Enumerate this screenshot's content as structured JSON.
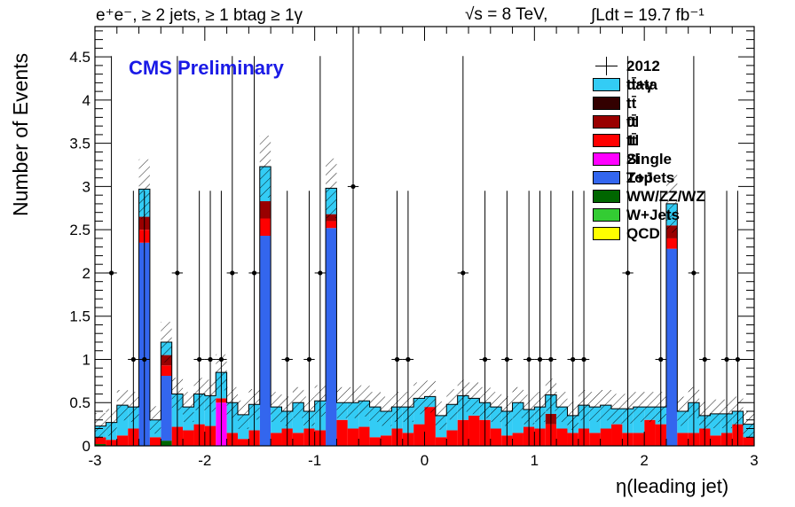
{
  "header": {
    "selection": "e⁺e⁻, ≥ 2 jets, ≥ 1 btag ≥ 1γ",
    "energy": "√s = 8 TeV,",
    "lumi": "∫Ldt = 19.7 fb⁻¹"
  },
  "watermark": "CMS Preliminary",
  "colors": {
    "ttgamma": "#33ccf5",
    "tt0l": "#330000",
    "tt1l": "#990000",
    "tt2l": "#ff0000",
    "singletop": "#ff00ff",
    "zjets": "#3366ee",
    "diboson": "#006600",
    "wjets": "#33cc33",
    "qcd": "#ffff00"
  },
  "chart_data": {
    "type": "bar",
    "stacked": true,
    "xlabel": "η(leading jet)",
    "ylabel": "Number of Events",
    "xlim": [
      -3,
      3
    ],
    "ylim": [
      0,
      4.85
    ],
    "xticks": [
      "-3",
      "-2",
      "-1",
      "0",
      "1",
      "2",
      "3"
    ],
    "yticks": [
      "0",
      "0.5",
      "1",
      "1.5",
      "2",
      "2.5",
      "3",
      "3.5",
      "4",
      "4.5"
    ],
    "bin_edges_note": "60 uniform bins from -3 to 3",
    "series": [
      {
        "name": "QCD",
        "color_key": "qcd",
        "values": [
          0,
          0,
          0,
          0,
          0,
          0,
          0,
          0,
          0,
          0,
          0,
          0,
          0,
          0,
          0,
          0,
          0,
          0,
          0,
          0,
          0,
          0,
          0,
          0,
          0,
          0,
          0,
          0,
          0,
          0,
          0,
          0,
          0,
          0,
          0,
          0,
          0,
          0,
          0,
          0,
          0,
          0,
          0,
          0,
          0,
          0,
          0,
          0,
          0,
          0,
          0,
          0,
          0,
          0,
          0,
          0,
          0,
          0,
          0,
          0
        ]
      },
      {
        "name": "W+Jets",
        "color_key": "wjets",
        "values": [
          0,
          0,
          0,
          0,
          0,
          0,
          0,
          0,
          0,
          0,
          0,
          0,
          0,
          0,
          0,
          0,
          0,
          0,
          0,
          0,
          0,
          0,
          0,
          0,
          0,
          0,
          0,
          0,
          0,
          0,
          0,
          0,
          0,
          0,
          0,
          0,
          0,
          0,
          0,
          0,
          0,
          0,
          0,
          0,
          0,
          0,
          0,
          0,
          0,
          0,
          0,
          0,
          0,
          0,
          0,
          0,
          0,
          0,
          0,
          0
        ]
      },
      {
        "name": "WW/ZZ/WZ",
        "color_key": "diboson",
        "values": [
          0.02,
          0,
          0,
          0,
          0,
          0,
          0.06,
          0,
          0,
          0,
          0,
          0,
          0,
          0,
          0,
          0,
          0,
          0,
          0,
          0,
          0,
          0,
          0,
          0,
          0,
          0,
          0,
          0,
          0,
          0,
          0,
          0,
          0,
          0,
          0,
          0,
          0,
          0,
          0,
          0,
          0,
          0,
          0,
          0,
          0,
          0,
          0,
          0,
          0,
          0,
          0,
          0,
          0,
          0,
          0,
          0,
          0,
          0,
          0,
          0
        ]
      },
      {
        "name": "Z+Jets",
        "color_key": "zjets",
        "values": [
          0,
          0,
          0,
          0,
          2.35,
          0,
          0.75,
          0,
          0,
          0,
          0,
          0,
          0,
          0,
          0,
          2.43,
          0,
          0,
          0,
          0,
          0,
          2.52,
          0,
          0,
          0,
          0,
          0,
          0,
          0,
          0,
          0,
          0,
          0,
          0,
          0,
          0,
          0,
          0,
          0,
          0,
          0,
          0,
          0,
          0,
          0,
          0,
          0,
          0,
          0,
          0,
          0,
          0,
          2.28,
          0,
          0,
          0,
          0,
          0,
          0,
          0
        ]
      },
      {
        "name": "Single Top",
        "color_key": "singletop",
        "values": [
          0,
          0,
          0,
          0,
          0,
          0,
          0,
          0,
          0,
          0,
          0,
          0.5,
          0,
          0,
          0,
          0,
          0,
          0,
          0,
          0,
          0,
          0,
          0,
          0,
          0,
          0,
          0,
          0,
          0,
          0,
          0,
          0,
          0,
          0,
          0,
          0,
          0,
          0,
          0,
          0,
          0,
          0,
          0,
          0,
          0,
          0,
          0,
          0,
          0,
          0,
          0,
          0,
          0,
          0,
          0,
          0,
          0,
          0,
          0,
          0
        ]
      },
      {
        "name": "tt̄ 2l",
        "color_key": "tt2l",
        "values": [
          0.08,
          0.07,
          0.12,
          0.2,
          0.15,
          0.1,
          0.12,
          0.22,
          0.18,
          0.25,
          0.23,
          0.05,
          0.15,
          0.08,
          0.18,
          0.2,
          0.15,
          0.2,
          0.15,
          0.2,
          0.18,
          0.08,
          0.3,
          0.2,
          0.22,
          0.1,
          0.12,
          0.2,
          0.15,
          0.25,
          0.45,
          0.1,
          0.18,
          0.3,
          0.35,
          0.3,
          0.2,
          0.12,
          0.15,
          0.22,
          0.2,
          0.25,
          0.2,
          0.15,
          0.2,
          0.15,
          0.2,
          0.25,
          0.15,
          0.15,
          0.3,
          0.25,
          0.12,
          0.15,
          0.15,
          0.2,
          0.12,
          0.15,
          0.25,
          0.1
        ]
      },
      {
        "name": "tt̄ 1l",
        "color_key": "tt1l",
        "values": [
          0,
          0,
          0,
          0,
          0.15,
          0,
          0.12,
          0,
          0,
          0,
          0,
          0,
          0,
          0,
          0,
          0.2,
          0,
          0,
          0,
          0,
          0,
          0.08,
          0,
          0,
          0,
          0,
          0,
          0,
          0,
          0,
          0,
          0,
          0,
          0,
          0,
          0,
          0,
          0,
          0,
          0,
          0,
          0.12,
          0,
          0,
          0,
          0,
          0,
          0,
          0,
          0,
          0,
          0,
          0.15,
          0,
          0,
          0,
          0,
          0,
          0,
          0
        ]
      },
      {
        "name": "tt̄ 0l",
        "color_key": "tt0l",
        "values": [
          0,
          0,
          0,
          0,
          0,
          0,
          0,
          0,
          0,
          0,
          0,
          0,
          0,
          0,
          0,
          0,
          0,
          0,
          0,
          0,
          0,
          0,
          0,
          0,
          0,
          0,
          0,
          0,
          0,
          0,
          0,
          0,
          0,
          0,
          0,
          0,
          0,
          0,
          0,
          0,
          0,
          0,
          0,
          0,
          0,
          0,
          0,
          0,
          0,
          0,
          0,
          0,
          0,
          0,
          0,
          0,
          0,
          0,
          0,
          0
        ]
      },
      {
        "name": "tt̄+γ",
        "color_key": "ttgamma",
        "values": [
          0.13,
          0.2,
          0.35,
          0.25,
          0.32,
          0.2,
          0.15,
          0.38,
          0.27,
          0.35,
          0.35,
          0.3,
          0.35,
          0.28,
          0.3,
          0.4,
          0.3,
          0.2,
          0.35,
          0.2,
          0.34,
          0.3,
          0.2,
          0.3,
          0.3,
          0.35,
          0.28,
          0.25,
          0.3,
          0.3,
          0.12,
          0.25,
          0.3,
          0.28,
          0.2,
          0.2,
          0.25,
          0.28,
          0.35,
          0.2,
          0.25,
          0.22,
          0.25,
          0.2,
          0.27,
          0.3,
          0.27,
          0.18,
          0.28,
          0.3,
          0.15,
          0.2,
          0.25,
          0.25,
          0.35,
          0.15,
          0.25,
          0.22,
          0.15,
          0.15
        ]
      }
    ],
    "data_points": {
      "name": "2012 data",
      "x_centers": [
        -2.85,
        -2.65,
        -2.55,
        -2.25,
        -2.05,
        -1.95,
        -1.85,
        -1.75,
        -1.55,
        -1.25,
        -1.05,
        -0.95,
        -0.65,
        -0.25,
        -0.15,
        0.35,
        0.55,
        0.75,
        0.95,
        1.05,
        1.15,
        1.35,
        1.45,
        1.85,
        2.15,
        2.45,
        2.55,
        2.75,
        2.85
      ],
      "y": [
        2,
        1,
        1,
        2,
        1,
        1,
        1,
        2,
        2,
        1,
        1,
        2,
        3,
        1,
        1,
        2,
        1,
        1,
        1,
        1,
        1,
        1,
        1,
        2,
        1,
        2,
        1,
        1,
        1
      ]
    },
    "legend": {
      "position": "top-right",
      "entries": [
        "2012 data",
        "tt̄+γ",
        "tt̄ 0l",
        "tt̄ 1l",
        "tt̄ 2l",
        "Single Top",
        "Z+Jets",
        "WW/ZZ/WZ",
        "W+Jets",
        "QCD"
      ],
      "color_keys": [
        "data",
        "ttgamma",
        "tt0l",
        "tt1l",
        "tt2l",
        "singletop",
        "zjets",
        "diboson",
        "wjets",
        "qcd"
      ]
    }
  }
}
